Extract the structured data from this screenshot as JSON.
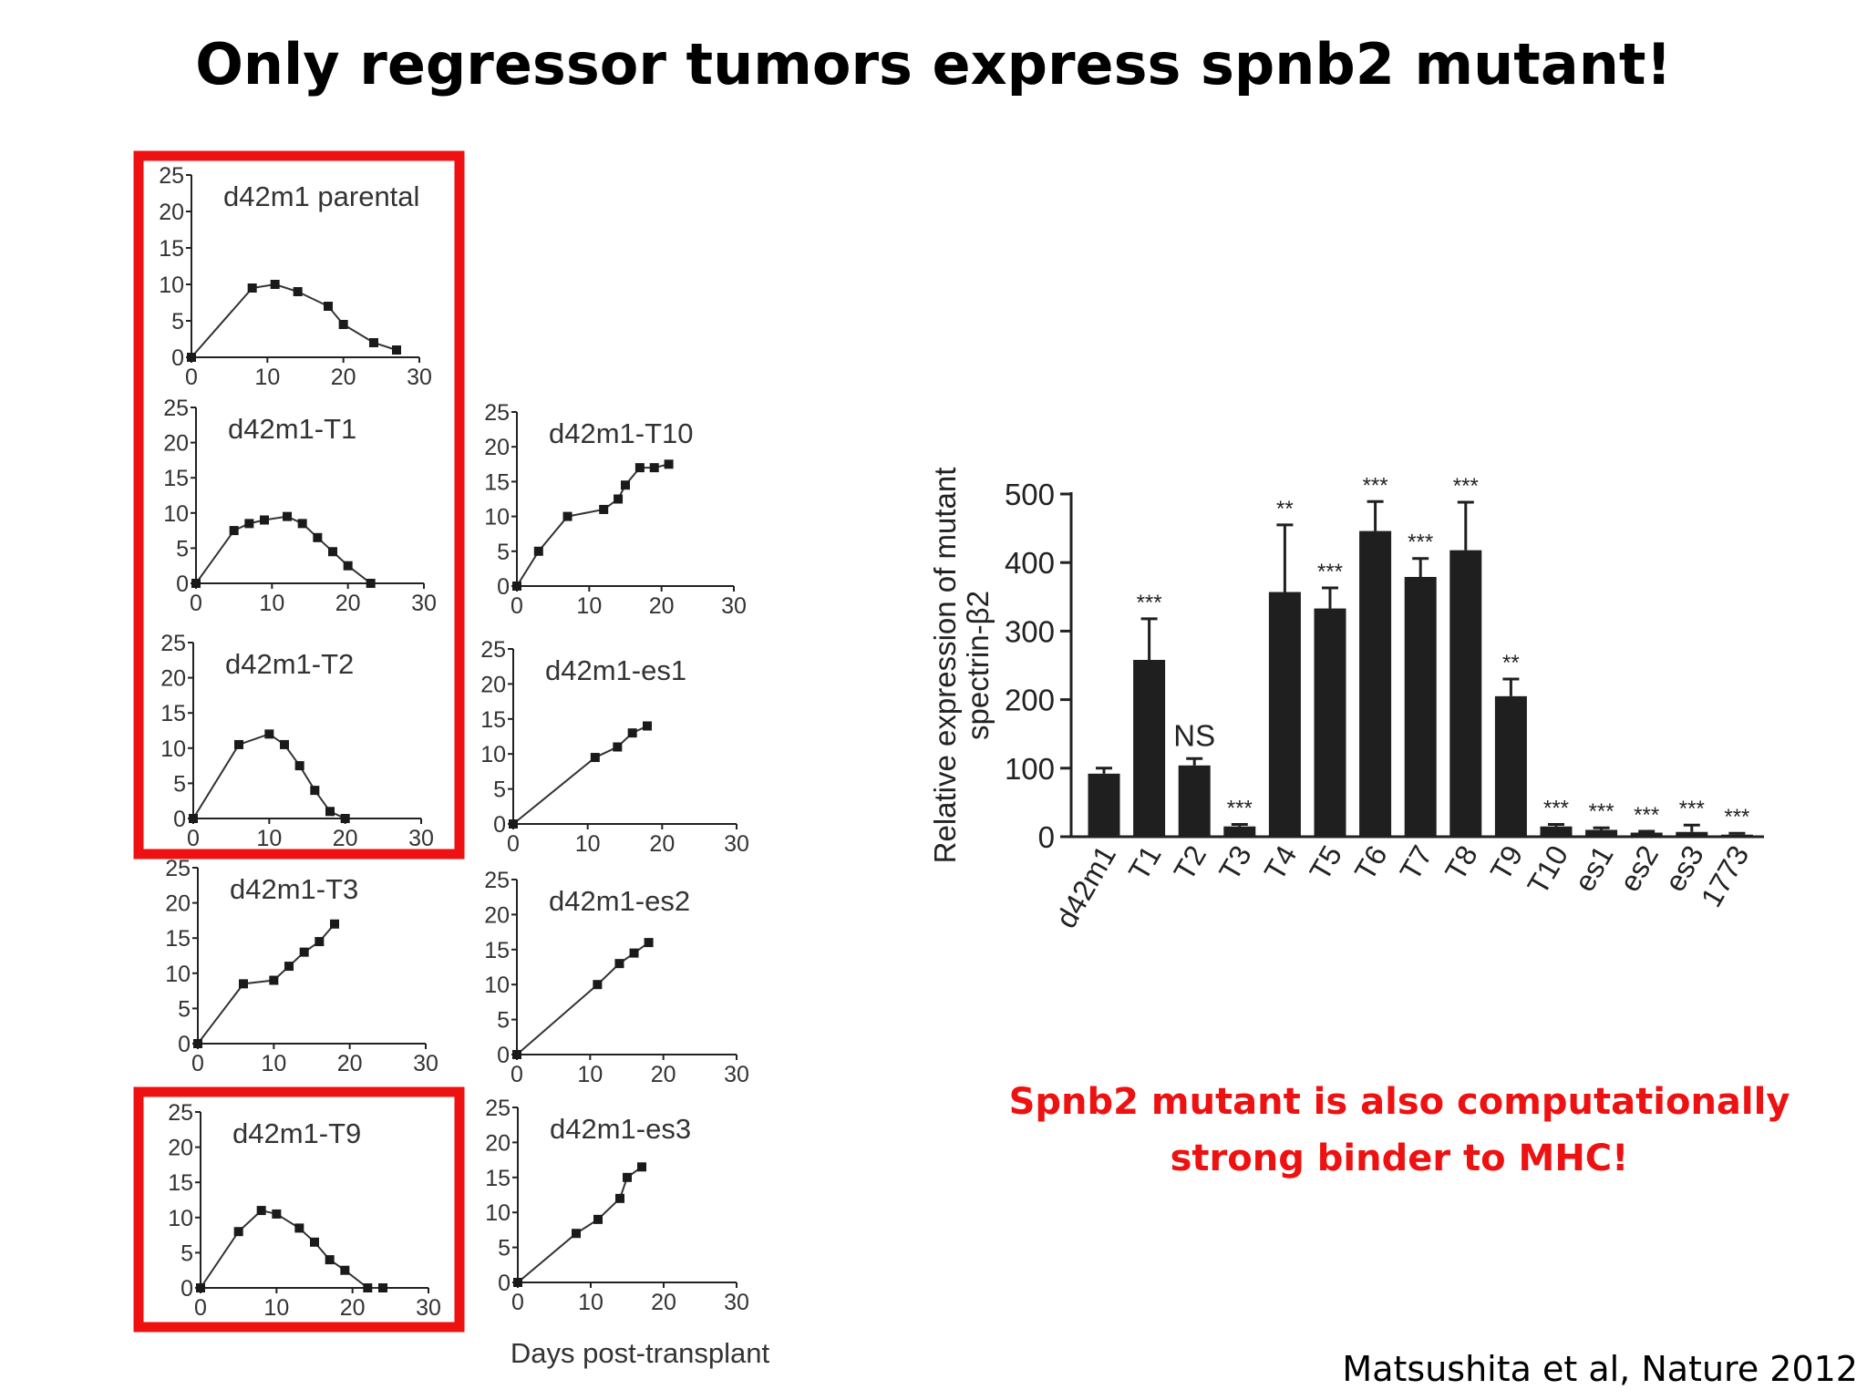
{
  "slide": {
    "title": "Only regressor tumors express spnb2 mutant!",
    "note_line1": "Spnb2 mutant is also computationally",
    "note_line2": "strong binder to MHC!",
    "citation": "Matsushita et al, Nature 2012",
    "highlight_color": "#ee1111"
  },
  "chart_data": [
    {
      "type": "line",
      "title": "d42m1 parental",
      "highlighted": true,
      "x": [
        0,
        8,
        11,
        14,
        18,
        20,
        24,
        27
      ],
      "y": [
        0,
        9.5,
        10,
        9,
        7,
        4.5,
        2,
        1
      ],
      "xlim": [
        0,
        30
      ],
      "ylim": [
        0,
        25
      ],
      "xticks": [
        0,
        10,
        20,
        30
      ],
      "yticks": [
        0,
        5,
        10,
        15,
        20,
        25
      ]
    },
    {
      "type": "line",
      "title": "d42m1-T1",
      "highlighted": true,
      "x": [
        0,
        5,
        7,
        9,
        12,
        14,
        16,
        18,
        20,
        23
      ],
      "y": [
        0,
        7.5,
        8.5,
        9,
        9.5,
        8.5,
        6.5,
        4.5,
        2.5,
        0
      ],
      "xlim": [
        0,
        30
      ],
      "ylim": [
        0,
        25
      ],
      "xticks": [
        0,
        10,
        20,
        30
      ],
      "yticks": [
        0,
        5,
        10,
        15,
        20,
        25
      ]
    },
    {
      "type": "line",
      "title": "d42m1-T2",
      "highlighted": true,
      "x": [
        0,
        6,
        10,
        12,
        14,
        16,
        18,
        20
      ],
      "y": [
        0,
        10.5,
        12,
        10.5,
        7.5,
        4,
        1,
        0
      ],
      "xlim": [
        0,
        30
      ],
      "ylim": [
        0,
        25
      ],
      "xticks": [
        0,
        10,
        20,
        30
      ],
      "yticks": [
        0,
        5,
        10,
        15,
        20,
        25
      ]
    },
    {
      "type": "line",
      "title": "d42m1-T3",
      "highlighted": false,
      "x": [
        0,
        6,
        10,
        12,
        14,
        16,
        18
      ],
      "y": [
        0,
        8.5,
        9,
        11,
        13,
        14.5,
        17
      ],
      "xlim": [
        0,
        30
      ],
      "ylim": [
        0,
        25
      ],
      "xticks": [
        0,
        10,
        20,
        30
      ],
      "yticks": [
        0,
        5,
        10,
        15,
        20,
        25
      ]
    },
    {
      "type": "line",
      "title": "d42m1-T9",
      "highlighted": true,
      "x": [
        0,
        5,
        8,
        10,
        13,
        15,
        17,
        19,
        22,
        24
      ],
      "y": [
        0,
        8,
        11,
        10.5,
        8.5,
        6.5,
        4,
        2.5,
        0,
        0
      ],
      "xlim": [
        0,
        30
      ],
      "ylim": [
        0,
        25
      ],
      "xticks": [
        0,
        10,
        20,
        30
      ],
      "yticks": [
        0,
        5,
        10,
        15,
        20,
        25
      ]
    },
    {
      "type": "line",
      "title": "d42m1-T10",
      "highlighted": false,
      "x": [
        0,
        3,
        7,
        12,
        14,
        15,
        17,
        19,
        21
      ],
      "y": [
        0,
        5,
        10,
        11,
        12.5,
        14.5,
        17,
        17,
        17.5
      ],
      "xlim": [
        0,
        30
      ],
      "ylim": [
        0,
        25
      ],
      "xticks": [
        0,
        10,
        20,
        30
      ],
      "yticks": [
        0,
        5,
        10,
        15,
        20,
        25
      ]
    },
    {
      "type": "line",
      "title": "d42m1-es1",
      "highlighted": false,
      "x": [
        0,
        11,
        14,
        16,
        18
      ],
      "y": [
        0,
        9.5,
        11,
        13,
        14
      ],
      "xlim": [
        0,
        30
      ],
      "ylim": [
        0,
        25
      ],
      "xticks": [
        0,
        10,
        20,
        30
      ],
      "yticks": [
        0,
        5,
        10,
        15,
        20,
        25
      ]
    },
    {
      "type": "line",
      "title": "d42m1-es2",
      "highlighted": false,
      "x": [
        0,
        11,
        14,
        16,
        18
      ],
      "y": [
        0,
        10,
        13,
        14.5,
        16
      ],
      "xlim": [
        0,
        30
      ],
      "ylim": [
        0,
        25
      ],
      "xticks": [
        0,
        10,
        20,
        30
      ],
      "yticks": [
        0,
        5,
        10,
        15,
        20,
        25
      ]
    },
    {
      "type": "line",
      "title": "d42m1-es3",
      "highlighted": false,
      "x": [
        0,
        8,
        11,
        14,
        15,
        17
      ],
      "y": [
        0,
        7,
        9,
        12,
        15,
        16.5
      ],
      "xlim": [
        0,
        30
      ],
      "ylim": [
        0,
        25
      ],
      "xticks": [
        0,
        10,
        20,
        30
      ],
      "yticks": [
        0,
        5,
        10,
        15,
        20,
        25
      ],
      "xlabel": "Days post-transplant"
    },
    {
      "type": "bar",
      "ylabel_line1": "Relative expression of mutant",
      "ylabel_line2": "spectrin-β2",
      "categories": [
        "d42m1",
        "T1",
        "T2",
        "T3",
        "T4",
        "T5",
        "T6",
        "T7",
        "T8",
        "T9",
        "T10",
        "es1",
        "es2",
        "es3",
        "1773"
      ],
      "values": [
        92,
        258,
        104,
        15,
        357,
        333,
        446,
        379,
        418,
        205,
        15,
        10,
        6,
        7,
        3
      ],
      "errors": [
        8,
        60,
        10,
        3,
        98,
        30,
        43,
        27,
        70,
        25,
        3,
        3,
        2,
        10,
        2
      ],
      "significance": [
        "",
        "***",
        "NS",
        "***",
        "**",
        "***",
        "***",
        "***",
        "***",
        "**",
        "***",
        "***",
        "***",
        "***",
        "***"
      ],
      "ylim": [
        0,
        500
      ],
      "yticks": [
        0,
        100,
        200,
        300,
        400,
        500
      ]
    }
  ]
}
